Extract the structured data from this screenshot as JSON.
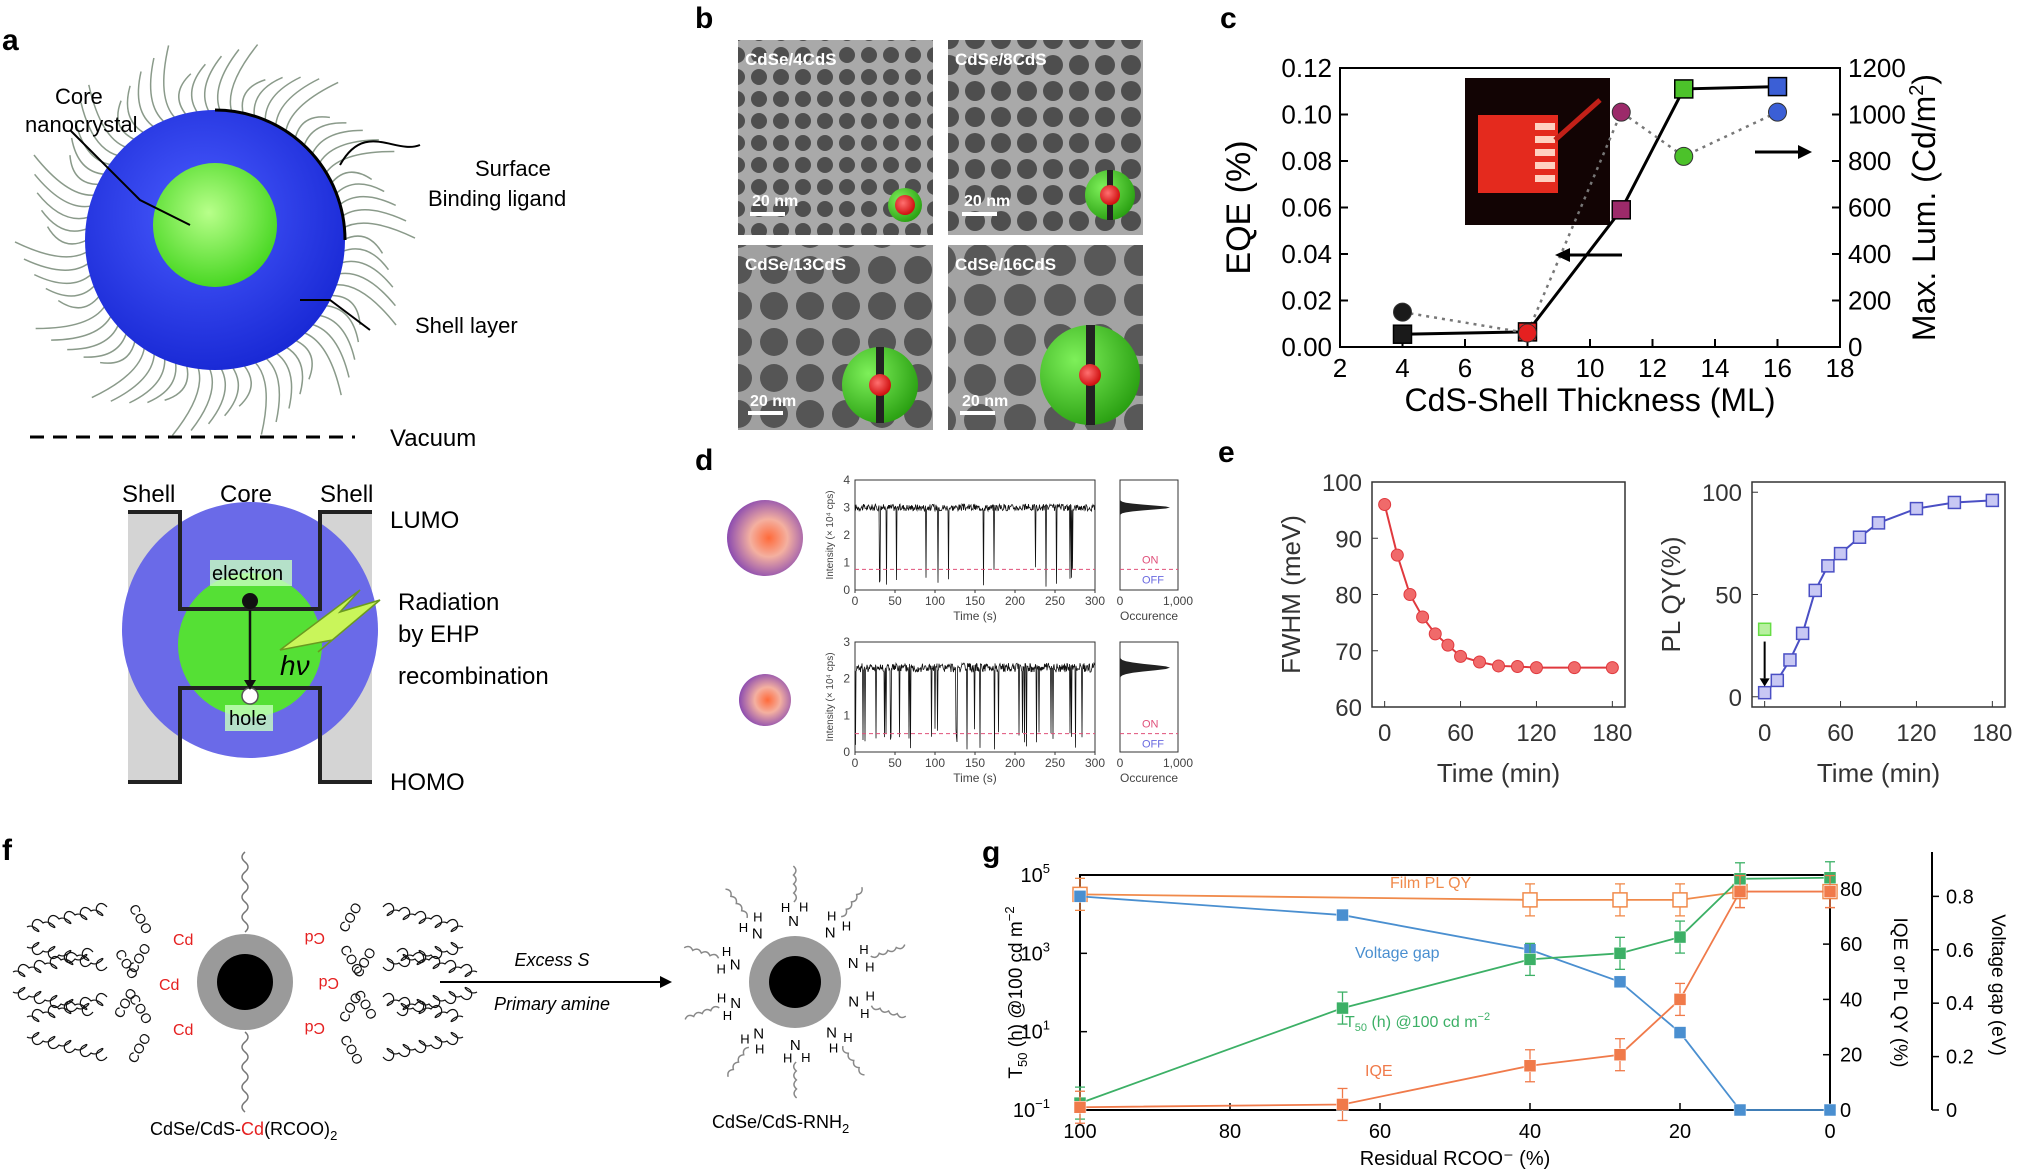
{
  "panels": {
    "a": {
      "label": "a",
      "core_label_1": "Core",
      "core_label_2": "nanocrystal",
      "ligand_label_1": "Surface",
      "ligand_label_2": "Binding ligand",
      "shell_layer_label": "Shell layer",
      "vacuum_label": "Vacuum",
      "band_shell_left": "Shell",
      "band_core": "Core",
      "band_shell_right": "Shell",
      "lumo": "LUMO",
      "homo": "HOMO",
      "electron": "electron",
      "hole": "hole",
      "hv": "hν",
      "radiation_1": "Radiation",
      "radiation_2": "by EHP",
      "radiation_3": "recombination"
    },
    "b": {
      "label": "b",
      "images": [
        {
          "title": "CdSe/4CdS",
          "scale": "20 nm"
        },
        {
          "title": "CdSe/8CdS",
          "scale": "20 nm"
        },
        {
          "title": "CdSe/13CdS",
          "scale": "20 nm"
        },
        {
          "title": "CdSe/16CdS",
          "scale": "20 nm"
        }
      ]
    },
    "c": {
      "label": "c"
    },
    "d": {
      "label": "d",
      "ylabel": "Intensity (× 10⁴ cps)",
      "xlabel": "Time (s)",
      "occ_label": "Occurence",
      "on": "ON",
      "off": "OFF",
      "occ_ticks": [
        "0",
        "1,000"
      ]
    },
    "e": {
      "label": "e"
    },
    "f": {
      "label": "f",
      "left_caption_a": "CdSe/CdS-",
      "left_caption_b": "Cd",
      "left_caption_c": "(RCOO)",
      "left_caption_d": "2",
      "arrow_top": "Excess S",
      "arrow_bottom": "Primary amine",
      "right_caption": "CdSe/CdS-RNH",
      "right_caption_sub": "2",
      "cd": "Cd",
      "coo": "COO",
      "h": "H",
      "n": "N"
    },
    "g": {
      "label": "g"
    }
  },
  "chart_data": [
    {
      "id": "c",
      "type": "line",
      "xlabel": "CdS-Shell Thickness (ML)",
      "ylabel": "EQE (%)",
      "y2label": "Max. Lum. (Cd/m",
      "y2label_sup": "2",
      "y2label_end": ")",
      "xlim": [
        2,
        18
      ],
      "ylim": [
        0,
        0.12
      ],
      "y2lim": [
        0,
        1200
      ],
      "xticks": [
        "2",
        "4",
        "6",
        "8",
        "10",
        "12",
        "14",
        "16",
        "18"
      ],
      "yticks": [
        "0.00",
        "0.02",
        "0.04",
        "0.06",
        "0.08",
        "0.10",
        "0.12"
      ],
      "y2ticks": [
        "0",
        "200",
        "400",
        "600",
        "800",
        "1000",
        "1200"
      ],
      "series": [
        {
          "name": "EQE",
          "axis": "left",
          "marker": "square",
          "style": "solid",
          "x": [
            4,
            8,
            11,
            13,
            16
          ],
          "y": [
            0.0055,
            0.0065,
            0.059,
            0.111,
            0.112
          ],
          "colors": [
            "#1a1a1a",
            "#e52020",
            "#9c2a6a",
            "#4cc22a",
            "#3b5fd6"
          ]
        },
        {
          "name": "Max. Lum.",
          "axis": "right",
          "marker": "circle",
          "style": "dotted",
          "x": [
            4,
            8,
            11,
            13,
            16
          ],
          "y": [
            150,
            60,
            1010,
            820,
            1010
          ],
          "colors": [
            "#1a1a1a",
            "#e52020",
            "#9c2a6a",
            "#4cc22a",
            "#3b5fd6"
          ]
        }
      ]
    },
    {
      "id": "d",
      "type": "line",
      "xlabel": "Time (s)",
      "ylabel": "Intensity (× 10⁴ cps)",
      "xticks": [
        "0",
        "50",
        "100",
        "150",
        "200",
        "250",
        "300"
      ],
      "panels": [
        {
          "ylim": [
            0,
            4
          ],
          "yticks": [
            "0",
            "1",
            "2",
            "3",
            "4"
          ],
          "baseline": 3.0,
          "threshold": 0.75
        },
        {
          "ylim": [
            0,
            3
          ],
          "yticks": [
            "0",
            "1",
            "2",
            "3"
          ],
          "baseline": 2.3,
          "threshold": 0.5
        }
      ]
    },
    {
      "id": "e1",
      "type": "line",
      "xlabel": "Time (min)",
      "ylabel": "FWHM (meV)",
      "xlim": [
        -10,
        190
      ],
      "ylim": [
        60,
        100
      ],
      "xticks": [
        "0",
        "60",
        "120",
        "180"
      ],
      "yticks": [
        "60",
        "70",
        "80",
        "90",
        "100"
      ],
      "x": [
        0,
        10,
        20,
        30,
        40,
        50,
        60,
        75,
        90,
        105,
        120,
        150,
        180
      ],
      "y": [
        96,
        87,
        80,
        76,
        73,
        71,
        69,
        68,
        67.3,
        67.2,
        67.0,
        67.0,
        67.0
      ],
      "color": "#e0393e"
    },
    {
      "id": "e2",
      "type": "line",
      "xlabel": "Time (min)",
      "ylabel": "PL QY(%)",
      "xlim": [
        -10,
        190
      ],
      "ylim": [
        -5,
        105
      ],
      "xticks": [
        "0",
        "60",
        "120",
        "180"
      ],
      "yticks": [
        "0",
        "50",
        "100"
      ],
      "x": [
        0,
        10,
        20,
        30,
        40,
        50,
        60,
        75,
        90,
        120,
        150,
        180
      ],
      "y": [
        2,
        8,
        18,
        31,
        52,
        64,
        70,
        78,
        85,
        92,
        95,
        96
      ],
      "color": "#4a4fc4",
      "initial_point": {
        "x": 0,
        "y": 33,
        "color": "#66dd44"
      }
    },
    {
      "id": "g",
      "type": "line",
      "xlabel": "Residual RCOO⁻ (%)",
      "ylabel": "T",
      "ylabel_sub": "50",
      "ylabel_rest": " (h) @100 cd m",
      "ylabel_sup": "−2",
      "y2label": "IQE or PL QY (%)",
      "y3label": "Voltage gap (eV)",
      "xlim": [
        100,
        0
      ],
      "xticks": [
        "100",
        "80",
        "60",
        "40",
        "20",
        "0"
      ],
      "ylog": [
        -1,
        5
      ],
      "yticks": [
        "10",
        "10",
        "10",
        "10"
      ],
      "ytick_exps": [
        "−1",
        "1",
        "3",
        "5"
      ],
      "y2ticks": [
        "0",
        "20",
        "40",
        "60",
        "80"
      ],
      "y3ticks": [
        "0",
        "0.2",
        "0.4",
        "0.6",
        "0.8"
      ],
      "series": [
        {
          "name": "Film PL QY",
          "axis": "y2",
          "color": "#f08a4b",
          "marker": "open-square",
          "x": [
            100,
            40,
            28,
            20,
            12,
            0
          ],
          "y": [
            78,
            76,
            76,
            76,
            79,
            79
          ]
        },
        {
          "name": "Voltage gap",
          "axis": "y3",
          "color": "#4a8fd0",
          "marker": "square",
          "x": [
            100,
            65,
            40,
            28,
            20,
            12,
            0
          ],
          "y": [
            0.8,
            0.73,
            0.6,
            0.48,
            0.29,
            0.0,
            0.0
          ]
        },
        {
          "name": "T",
          "name_sub": "50",
          "name_rest": " (h) @100 cd m",
          "name_sup": "−2",
          "axis": "log",
          "color": "#3cb066",
          "marker": "square",
          "x": [
            100,
            65,
            40,
            28,
            20,
            12,
            0
          ],
          "y": [
            0.15,
            40,
            700,
            1000,
            2600,
            80000,
            85000
          ]
        },
        {
          "name": "IQE",
          "axis": "y2",
          "color": "#f07a4a",
          "marker": "square",
          "x": [
            100,
            65,
            40,
            28,
            20,
            12,
            0
          ],
          "y": [
            1,
            2,
            16,
            20,
            40,
            79,
            79
          ]
        }
      ]
    }
  ]
}
